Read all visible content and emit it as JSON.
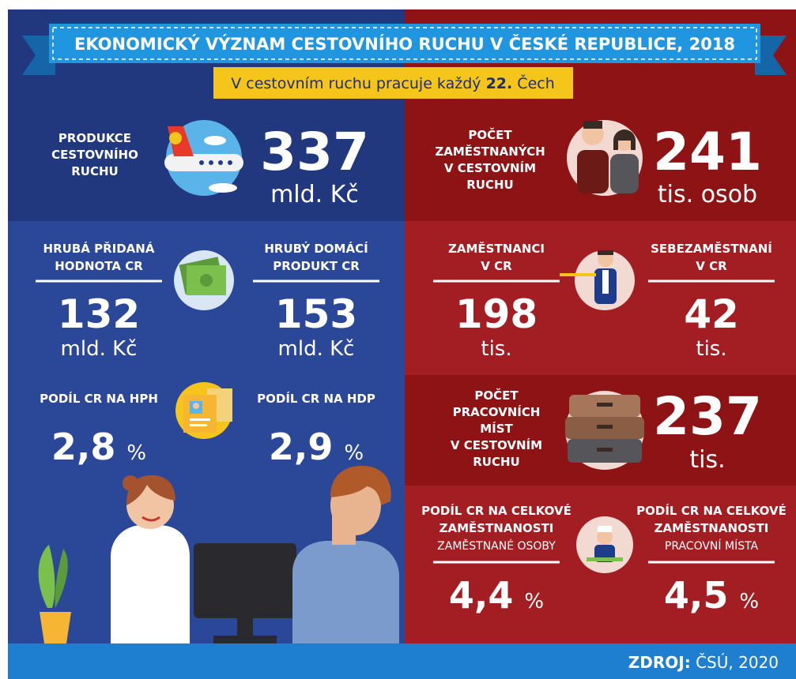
{
  "header": {
    "title": "EKONOMICKÝ VÝZNAM CESTOVNÍHO RUCHU V ČESKÉ REPUBLICE, 2018",
    "subtitle": {
      "before": "V cestovním ruchu pracuje každý",
      "number": "22.",
      "after": "Čech"
    }
  },
  "left": {
    "production": {
      "label": [
        "PRODUKCE",
        "CESTOVNÍHO",
        "RUCHU"
      ],
      "value": "337",
      "unit": "mld. Kč"
    },
    "gva": {
      "label": [
        "HRUBÁ PŘIDANÁ",
        "HODNOTA CR"
      ],
      "value": "132",
      "unit": "mld. Kč"
    },
    "gdp": {
      "label": [
        "HRUBÝ DOMÁCÍ",
        "PRODUKT CR"
      ],
      "value": "153",
      "unit": "mld. Kč"
    },
    "gva_share": {
      "label": "PODÍL CR NA HPH",
      "value": "2,8",
      "unit": "%"
    },
    "gdp_share": {
      "label": "PODÍL CR NA HDP",
      "value": "2,9",
      "unit": "%"
    }
  },
  "right": {
    "employed": {
      "label": [
        "POČET",
        "ZAMĚSTNANÝCH",
        "V CESTOVNÍM",
        "RUCHU"
      ],
      "value": "241",
      "unit": "tis. osob"
    },
    "employees": {
      "label": [
        "ZAMĚSTNANCI",
        "V CR"
      ],
      "value": "198",
      "unit": "tis."
    },
    "self_employed": {
      "label": [
        "SEBEZAMĚSTNANÍ",
        "V CR"
      ],
      "value": "42",
      "unit": "tis."
    },
    "jobs": {
      "label": [
        "POČET",
        "PRACOVNÍCH",
        "MÍST",
        "V CESTOVNÍM",
        "RUCHU"
      ],
      "value": "237",
      "unit": "tis."
    },
    "employment_share": {
      "label": [
        "PODÍL CR NA CELKOVÉ",
        "ZAMĚSTNANOSTI"
      ],
      "sublabel": "ZAMĚSTNANÉ OSOBY",
      "value": "4,4",
      "unit": "%"
    },
    "jobs_share": {
      "label": [
        "PODÍL CR NA CELKOVÉ",
        "ZAMĚSTNANOSTI"
      ],
      "sublabel": "PRACOVNÍ MÍSTA",
      "value": "4,5",
      "unit": "%"
    }
  },
  "footer": {
    "source_label": "ZDROJ:",
    "source": "ČSÚ, 2020"
  }
}
